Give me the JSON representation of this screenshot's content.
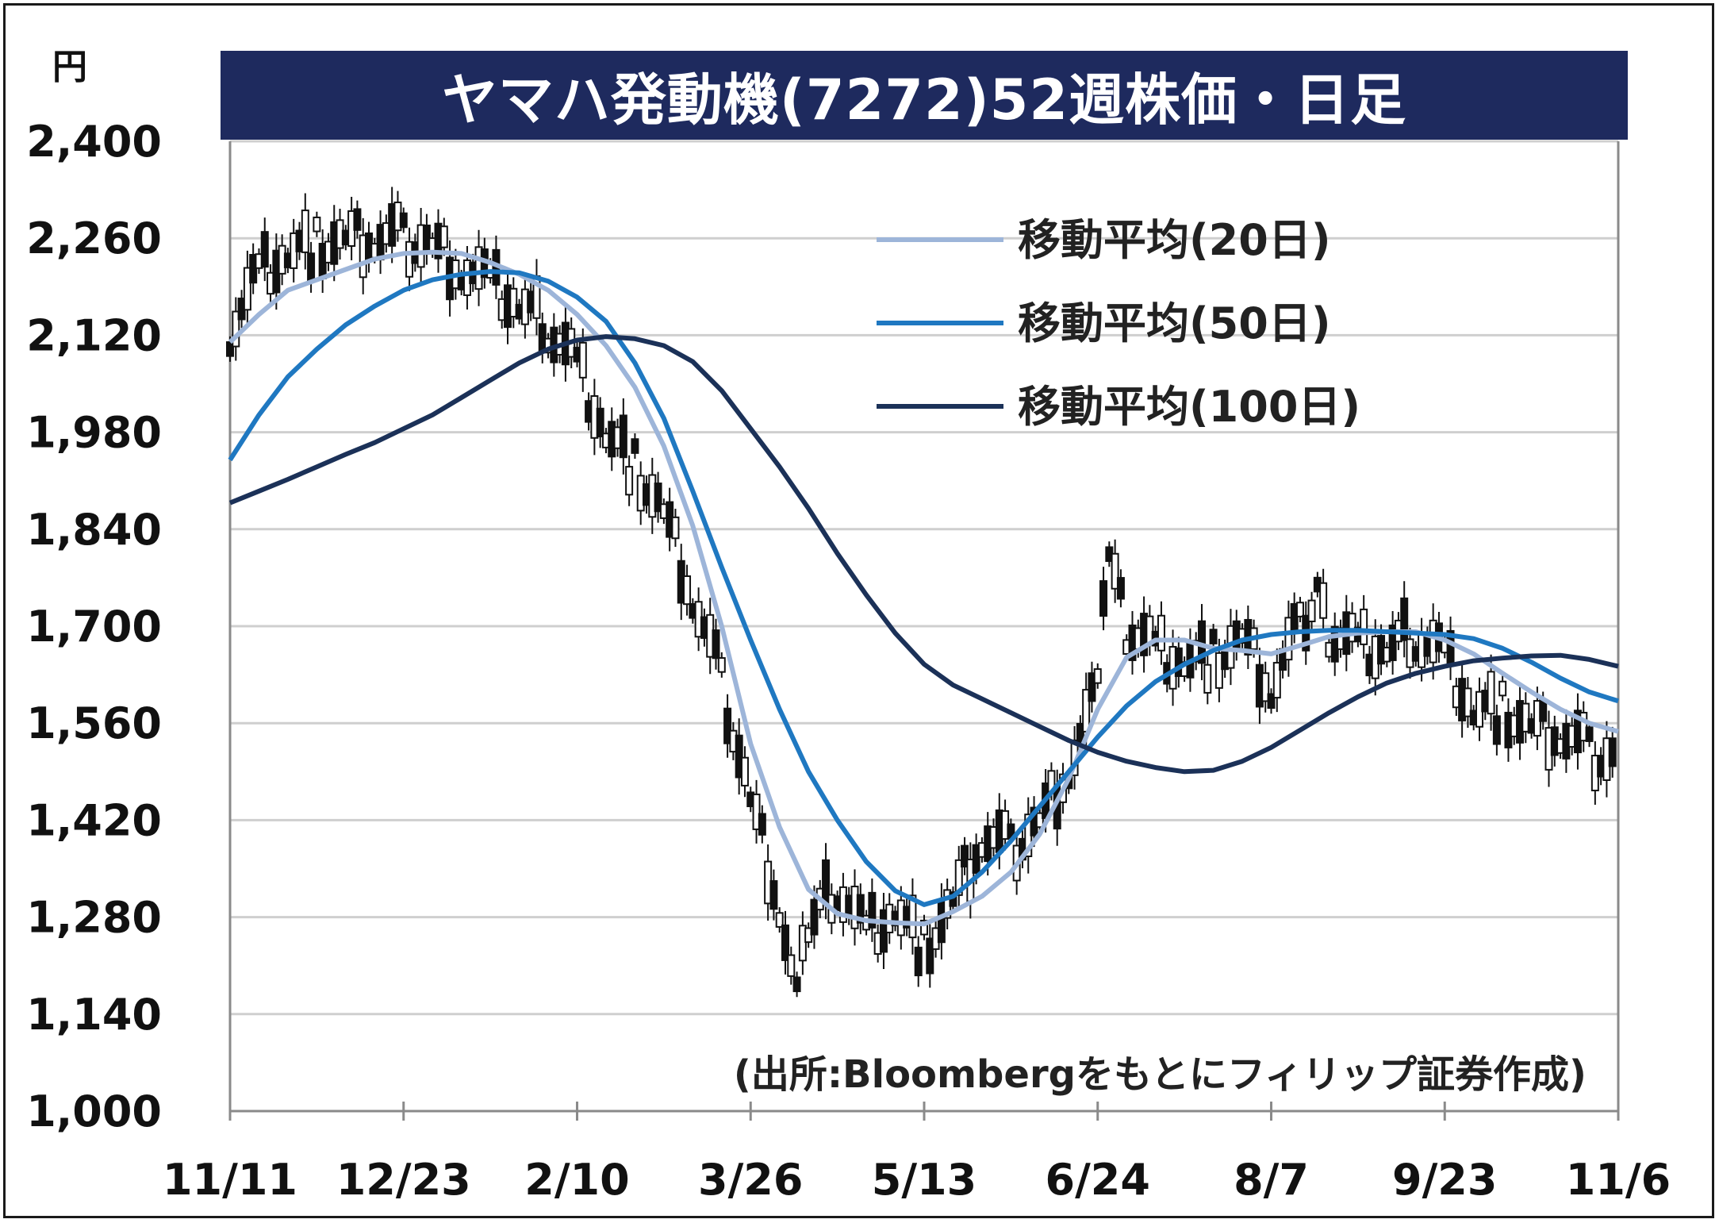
{
  "title": "ヤマハ発動機(7272)52週株価・日足",
  "unit": "円",
  "source": "(出所:Bloombergをもとにフィリップ証券作成)",
  "chart_data": {
    "type": "line",
    "ylim": [
      1000,
      2400
    ],
    "y_ticks": [
      "2,400",
      "2,260",
      "2,120",
      "1,980",
      "1,840",
      "1,700",
      "1,560",
      "1,420",
      "1,280",
      "1,140",
      "1,000"
    ],
    "y_tick_values": [
      2400,
      2260,
      2120,
      1980,
      1840,
      1700,
      1560,
      1420,
      1280,
      1140,
      1000
    ],
    "x_ticks": [
      "11/11",
      "12/23",
      "2/10",
      "3/26",
      "5/13",
      "6/24",
      "8/7",
      "9/23",
      "11/6"
    ],
    "x_tick_index": [
      0,
      30,
      60,
      90,
      120,
      150,
      180,
      210,
      240
    ],
    "x_range": [
      0,
      240
    ],
    "grid": "horizontal",
    "legend_position": "top-right",
    "series": [
      {
        "name": "移動平均(20日)",
        "color": "#9db5d9",
        "points": [
          [
            0,
            2110
          ],
          [
            5,
            2150
          ],
          [
            10,
            2185
          ],
          [
            15,
            2200
          ],
          [
            20,
            2215
          ],
          [
            25,
            2230
          ],
          [
            30,
            2238
          ],
          [
            35,
            2240
          ],
          [
            40,
            2238
          ],
          [
            45,
            2225
          ],
          [
            50,
            2208
          ],
          [
            55,
            2185
          ],
          [
            60,
            2150
          ],
          [
            65,
            2105
          ],
          [
            70,
            2045
          ],
          [
            75,
            1960
          ],
          [
            80,
            1845
          ],
          [
            85,
            1700
          ],
          [
            90,
            1530
          ],
          [
            95,
            1410
          ],
          [
            100,
            1320
          ],
          [
            105,
            1285
          ],
          [
            110,
            1275
          ],
          [
            115,
            1272
          ],
          [
            120,
            1270
          ],
          [
            125,
            1288
          ],
          [
            130,
            1310
          ],
          [
            135,
            1345
          ],
          [
            140,
            1400
          ],
          [
            145,
            1480
          ],
          [
            150,
            1580
          ],
          [
            155,
            1655
          ],
          [
            160,
            1680
          ],
          [
            165,
            1680
          ],
          [
            170,
            1668
          ],
          [
            175,
            1665
          ],
          [
            180,
            1660
          ],
          [
            185,
            1672
          ],
          [
            190,
            1685
          ],
          [
            195,
            1690
          ],
          [
            200,
            1692
          ],
          [
            205,
            1692
          ],
          [
            210,
            1680
          ],
          [
            215,
            1660
          ],
          [
            220,
            1632
          ],
          [
            225,
            1605
          ],
          [
            230,
            1580
          ],
          [
            235,
            1560
          ],
          [
            240,
            1548
          ]
        ]
      },
      {
        "name": "移動平均(50日)",
        "color": "#1f78c1",
        "points": [
          [
            0,
            1940
          ],
          [
            5,
            2005
          ],
          [
            10,
            2060
          ],
          [
            15,
            2100
          ],
          [
            20,
            2135
          ],
          [
            25,
            2162
          ],
          [
            30,
            2185
          ],
          [
            35,
            2200
          ],
          [
            40,
            2208
          ],
          [
            45,
            2212
          ],
          [
            50,
            2210
          ],
          [
            55,
            2198
          ],
          [
            60,
            2175
          ],
          [
            65,
            2140
          ],
          [
            70,
            2080
          ],
          [
            75,
            2000
          ],
          [
            80,
            1895
          ],
          [
            85,
            1785
          ],
          [
            90,
            1680
          ],
          [
            95,
            1580
          ],
          [
            100,
            1490
          ],
          [
            105,
            1420
          ],
          [
            110,
            1360
          ],
          [
            115,
            1318
          ],
          [
            120,
            1298
          ],
          [
            125,
            1310
          ],
          [
            130,
            1345
          ],
          [
            135,
            1390
          ],
          [
            140,
            1440
          ],
          [
            145,
            1490
          ],
          [
            150,
            1540
          ],
          [
            155,
            1585
          ],
          [
            160,
            1620
          ],
          [
            165,
            1645
          ],
          [
            170,
            1665
          ],
          [
            175,
            1680
          ],
          [
            180,
            1688
          ],
          [
            185,
            1692
          ],
          [
            190,
            1694
          ],
          [
            195,
            1694
          ],
          [
            200,
            1692
          ],
          [
            205,
            1690
          ],
          [
            210,
            1688
          ],
          [
            215,
            1682
          ],
          [
            220,
            1668
          ],
          [
            225,
            1648
          ],
          [
            230,
            1625
          ],
          [
            235,
            1605
          ],
          [
            240,
            1592
          ]
        ]
      },
      {
        "name": "移動平均(100日)",
        "color": "#1b3158",
        "points": [
          [
            0,
            1878
          ],
          [
            5,
            1895
          ],
          [
            10,
            1912
          ],
          [
            15,
            1930
          ],
          [
            20,
            1948
          ],
          [
            25,
            1965
          ],
          [
            30,
            1985
          ],
          [
            35,
            2005
          ],
          [
            40,
            2030
          ],
          [
            45,
            2055
          ],
          [
            50,
            2080
          ],
          [
            55,
            2100
          ],
          [
            60,
            2113
          ],
          [
            65,
            2118
          ],
          [
            70,
            2115
          ],
          [
            75,
            2105
          ],
          [
            80,
            2082
          ],
          [
            85,
            2040
          ],
          [
            90,
            1985
          ],
          [
            95,
            1930
          ],
          [
            100,
            1870
          ],
          [
            105,
            1805
          ],
          [
            110,
            1745
          ],
          [
            115,
            1690
          ],
          [
            120,
            1645
          ],
          [
            125,
            1615
          ],
          [
            130,
            1595
          ],
          [
            135,
            1575
          ],
          [
            140,
            1555
          ],
          [
            145,
            1535
          ],
          [
            150,
            1518
          ],
          [
            155,
            1505
          ],
          [
            160,
            1496
          ],
          [
            165,
            1490
          ],
          [
            170,
            1492
          ],
          [
            175,
            1505
          ],
          [
            180,
            1525
          ],
          [
            185,
            1550
          ],
          [
            190,
            1575
          ],
          [
            195,
            1598
          ],
          [
            200,
            1618
          ],
          [
            205,
            1632
          ],
          [
            210,
            1642
          ],
          [
            215,
            1650
          ],
          [
            220,
            1654
          ],
          [
            225,
            1657
          ],
          [
            230,
            1658
          ],
          [
            235,
            1652
          ],
          [
            240,
            1642
          ]
        ]
      },
      {
        "name": "",
        "type": "candlestick",
        "points": [
          [
            0,
            2130
          ],
          [
            5,
            2215
          ],
          [
            10,
            2240
          ],
          [
            15,
            2250
          ],
          [
            20,
            2255
          ],
          [
            25,
            2260
          ],
          [
            30,
            2262
          ],
          [
            35,
            2250
          ],
          [
            40,
            2220
          ],
          [
            45,
            2195
          ],
          [
            50,
            2160
          ],
          [
            55,
            2135
          ],
          [
            60,
            2080
          ],
          [
            65,
            1980
          ],
          [
            70,
            1930
          ],
          [
            75,
            1860
          ],
          [
            80,
            1740
          ],
          [
            85,
            1620
          ],
          [
            90,
            1450
          ],
          [
            95,
            1300
          ],
          [
            98,
            1165
          ],
          [
            100,
            1260
          ],
          [
            105,
            1330
          ],
          [
            110,
            1260
          ],
          [
            115,
            1290
          ],
          [
            120,
            1235
          ],
          [
            125,
            1300
          ],
          [
            130,
            1395
          ],
          [
            135,
            1380
          ],
          [
            140,
            1420
          ],
          [
            145,
            1500
          ],
          [
            150,
            1610
          ],
          [
            152,
            1810
          ],
          [
            155,
            1700
          ],
          [
            160,
            1670
          ],
          [
            165,
            1650
          ],
          [
            170,
            1655
          ],
          [
            175,
            1680
          ],
          [
            180,
            1610
          ],
          [
            185,
            1700
          ],
          [
            188,
            1760
          ],
          [
            190,
            1690
          ],
          [
            195,
            1670
          ],
          [
            200,
            1665
          ],
          [
            205,
            1690
          ],
          [
            210,
            1660
          ],
          [
            215,
            1580
          ],
          [
            220,
            1580
          ],
          [
            225,
            1550
          ],
          [
            230,
            1545
          ],
          [
            235,
            1520
          ],
          [
            240,
            1510
          ]
        ]
      }
    ]
  }
}
